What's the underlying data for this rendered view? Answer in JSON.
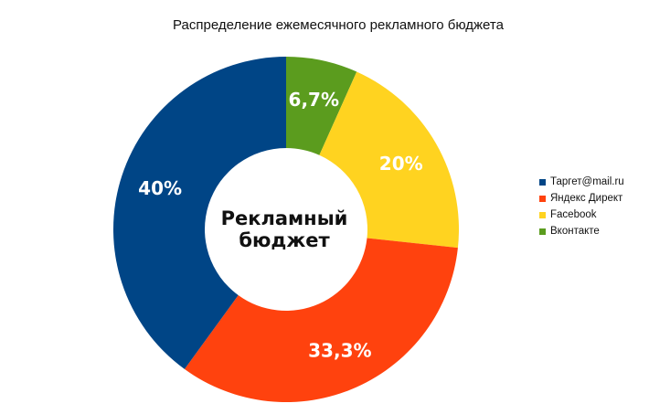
{
  "chart_data": {
    "type": "pie",
    "variant": "donut",
    "title": "Распределение ежемесячного рекламного бюджета",
    "center_label": [
      "Рекламный",
      "бюджет"
    ],
    "slices": [
      {
        "name": "Вконтакте",
        "value": 6.7,
        "label": "6,7%",
        "color": "#5b9c1e"
      },
      {
        "name": "Facebook",
        "value": 20,
        "label": "20%",
        "color": "#ffd320"
      },
      {
        "name": "Яндекс Директ",
        "value": 33.3,
        "label": "33,3%",
        "color": "#ff420e"
      },
      {
        "name": "Таргет@mail.ru",
        "value": 40,
        "label": "40%",
        "color": "#004586"
      }
    ],
    "legend": {
      "placement": "right",
      "entries": [
        {
          "name": "Таргет@mail.ru",
          "color": "#004586"
        },
        {
          "name": "Яндекс Директ",
          "color": "#ff420e"
        },
        {
          "name": "Facebook",
          "color": "#ffd320"
        },
        {
          "name": "Вконтакте",
          "color": "#5b9c1e"
        }
      ]
    }
  }
}
